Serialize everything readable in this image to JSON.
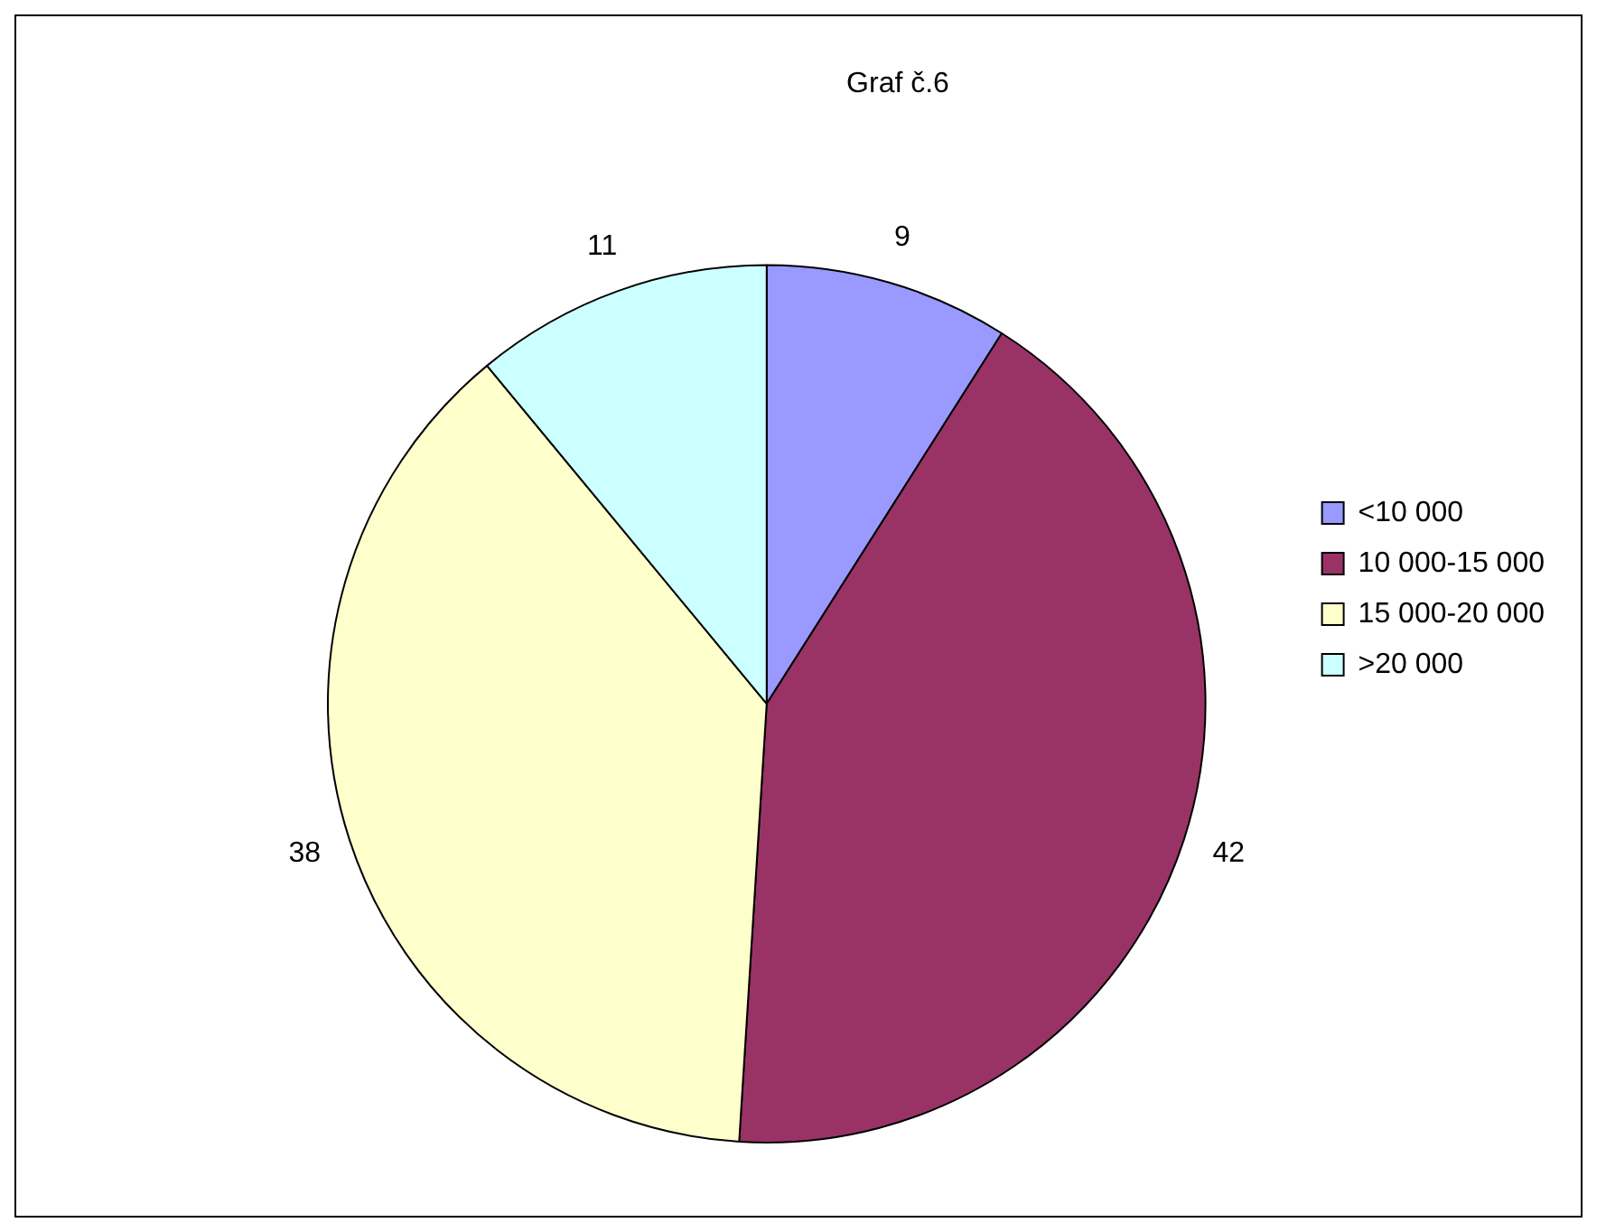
{
  "chart_data": {
    "type": "pie",
    "title": "Graf č.6",
    "categories": [
      "<10 000",
      "10 000-15 000",
      "15 000-20 000",
      ">20 000"
    ],
    "values": [
      9,
      42,
      38,
      11
    ],
    "colors": [
      "#9999ff",
      "#993366",
      "#ffffcc",
      "#ccffff"
    ],
    "data_labels": true,
    "legend": "right"
  }
}
